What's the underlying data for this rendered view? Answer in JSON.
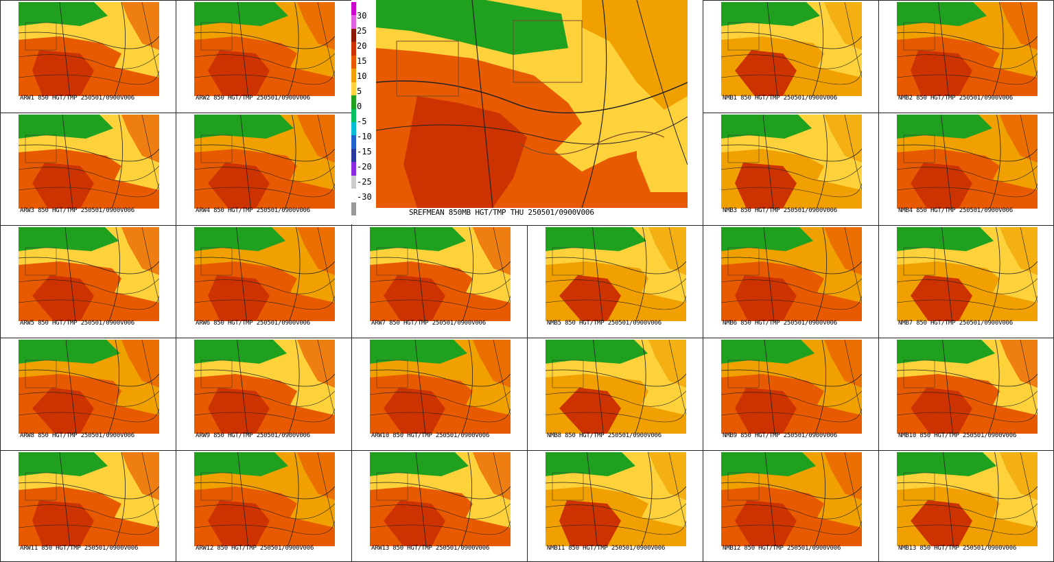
{
  "main": {
    "title": "SREFMEAN 850MB HGT/TMP THU 250501/0900V006",
    "colorbar": {
      "labels": [
        "30",
        "25",
        "20",
        "15",
        "10",
        "5",
        "0",
        "-5",
        "-10",
        "-15",
        "-20",
        "-25",
        "-30"
      ],
      "colors": [
        "#cc00cc",
        "#e060e0",
        "#8b1a00",
        "#cc3300",
        "#e85a00",
        "#f0a000",
        "#ffd23c",
        "#1fa01f",
        "#00c060",
        "#00bcd4",
        "#1e63c8",
        "#2a3a9a",
        "#8a2be2",
        "#cccccc",
        "#ffffff",
        "#999999"
      ]
    }
  },
  "members": [
    {
      "label": "ARW1 850 HGT/TMP 250501/0900V006",
      "style": 0
    },
    {
      "label": "ARW2 850 HGT/TMP 250501/0900V006",
      "style": 1
    },
    {
      "label": "NMB1 850 HGT/TMP 250501/0900V006",
      "style": 2
    },
    {
      "label": "NMB2 850 HGT/TMP 250501/0900V006",
      "style": 1
    },
    {
      "label": "ARW3 850 HGT/TMP 250501/0900V006",
      "style": 0
    },
    {
      "label": "ARW4 850 HGT/TMP 250501/0900V006",
      "style": 1
    },
    {
      "label": "NMB3 850 HGT/TMP 250501/0900V006",
      "style": 2
    },
    {
      "label": "NMB4 850 HGT/TMP 250501/0900V006",
      "style": 1
    },
    {
      "label": "ARW5 850 HGT/TMP 250501/0900V006",
      "style": 0
    },
    {
      "label": "ARW6 850 HGT/TMP 250501/0900V006",
      "style": 1
    },
    {
      "label": "ARW7 850 HGT/TMP 250501/0900V006",
      "style": 0
    },
    {
      "label": "NMB5 850 HGT/TMP 250501/0900V006",
      "style": 2
    },
    {
      "label": "NMB6 850 HGT/TMP 250501/0900V006",
      "style": 1
    },
    {
      "label": "NMB7 850 HGT/TMP 250501/0900V006",
      "style": 2
    },
    {
      "label": "ARW8 850 HGT/TMP 250501/0900V006",
      "style": 1
    },
    {
      "label": "ARW9 850 HGT/TMP 250501/0900V006",
      "style": 0
    },
    {
      "label": "ARW10 850 HGT/TMP 250501/0900V006",
      "style": 1
    },
    {
      "label": "NMB8 850 HGT/TMP 250501/0900V006",
      "style": 2
    },
    {
      "label": "NMB9 850 HGT/TMP 250501/0900V006",
      "style": 1
    },
    {
      "label": "NMB10 850 HGT/TMP 250501/0900V006",
      "style": 0
    },
    {
      "label": "ARW11 850 HGT/TMP 250501/0900V006",
      "style": 0
    },
    {
      "label": "ARW12 850 HGT/TMP 250501/0900V006",
      "style": 1
    },
    {
      "label": "ARW13 850 HGT/TMP 250501/0900V006",
      "style": 0
    },
    {
      "label": "NMB11 850 HGT/TMP 250501/0900V006",
      "style": 2
    },
    {
      "label": "NMB12 850 HGT/TMP 250501/0900V006",
      "style": 1
    },
    {
      "label": "NMB13 850 HGT/TMP 250501/0900V006",
      "style": 2
    }
  ]
}
